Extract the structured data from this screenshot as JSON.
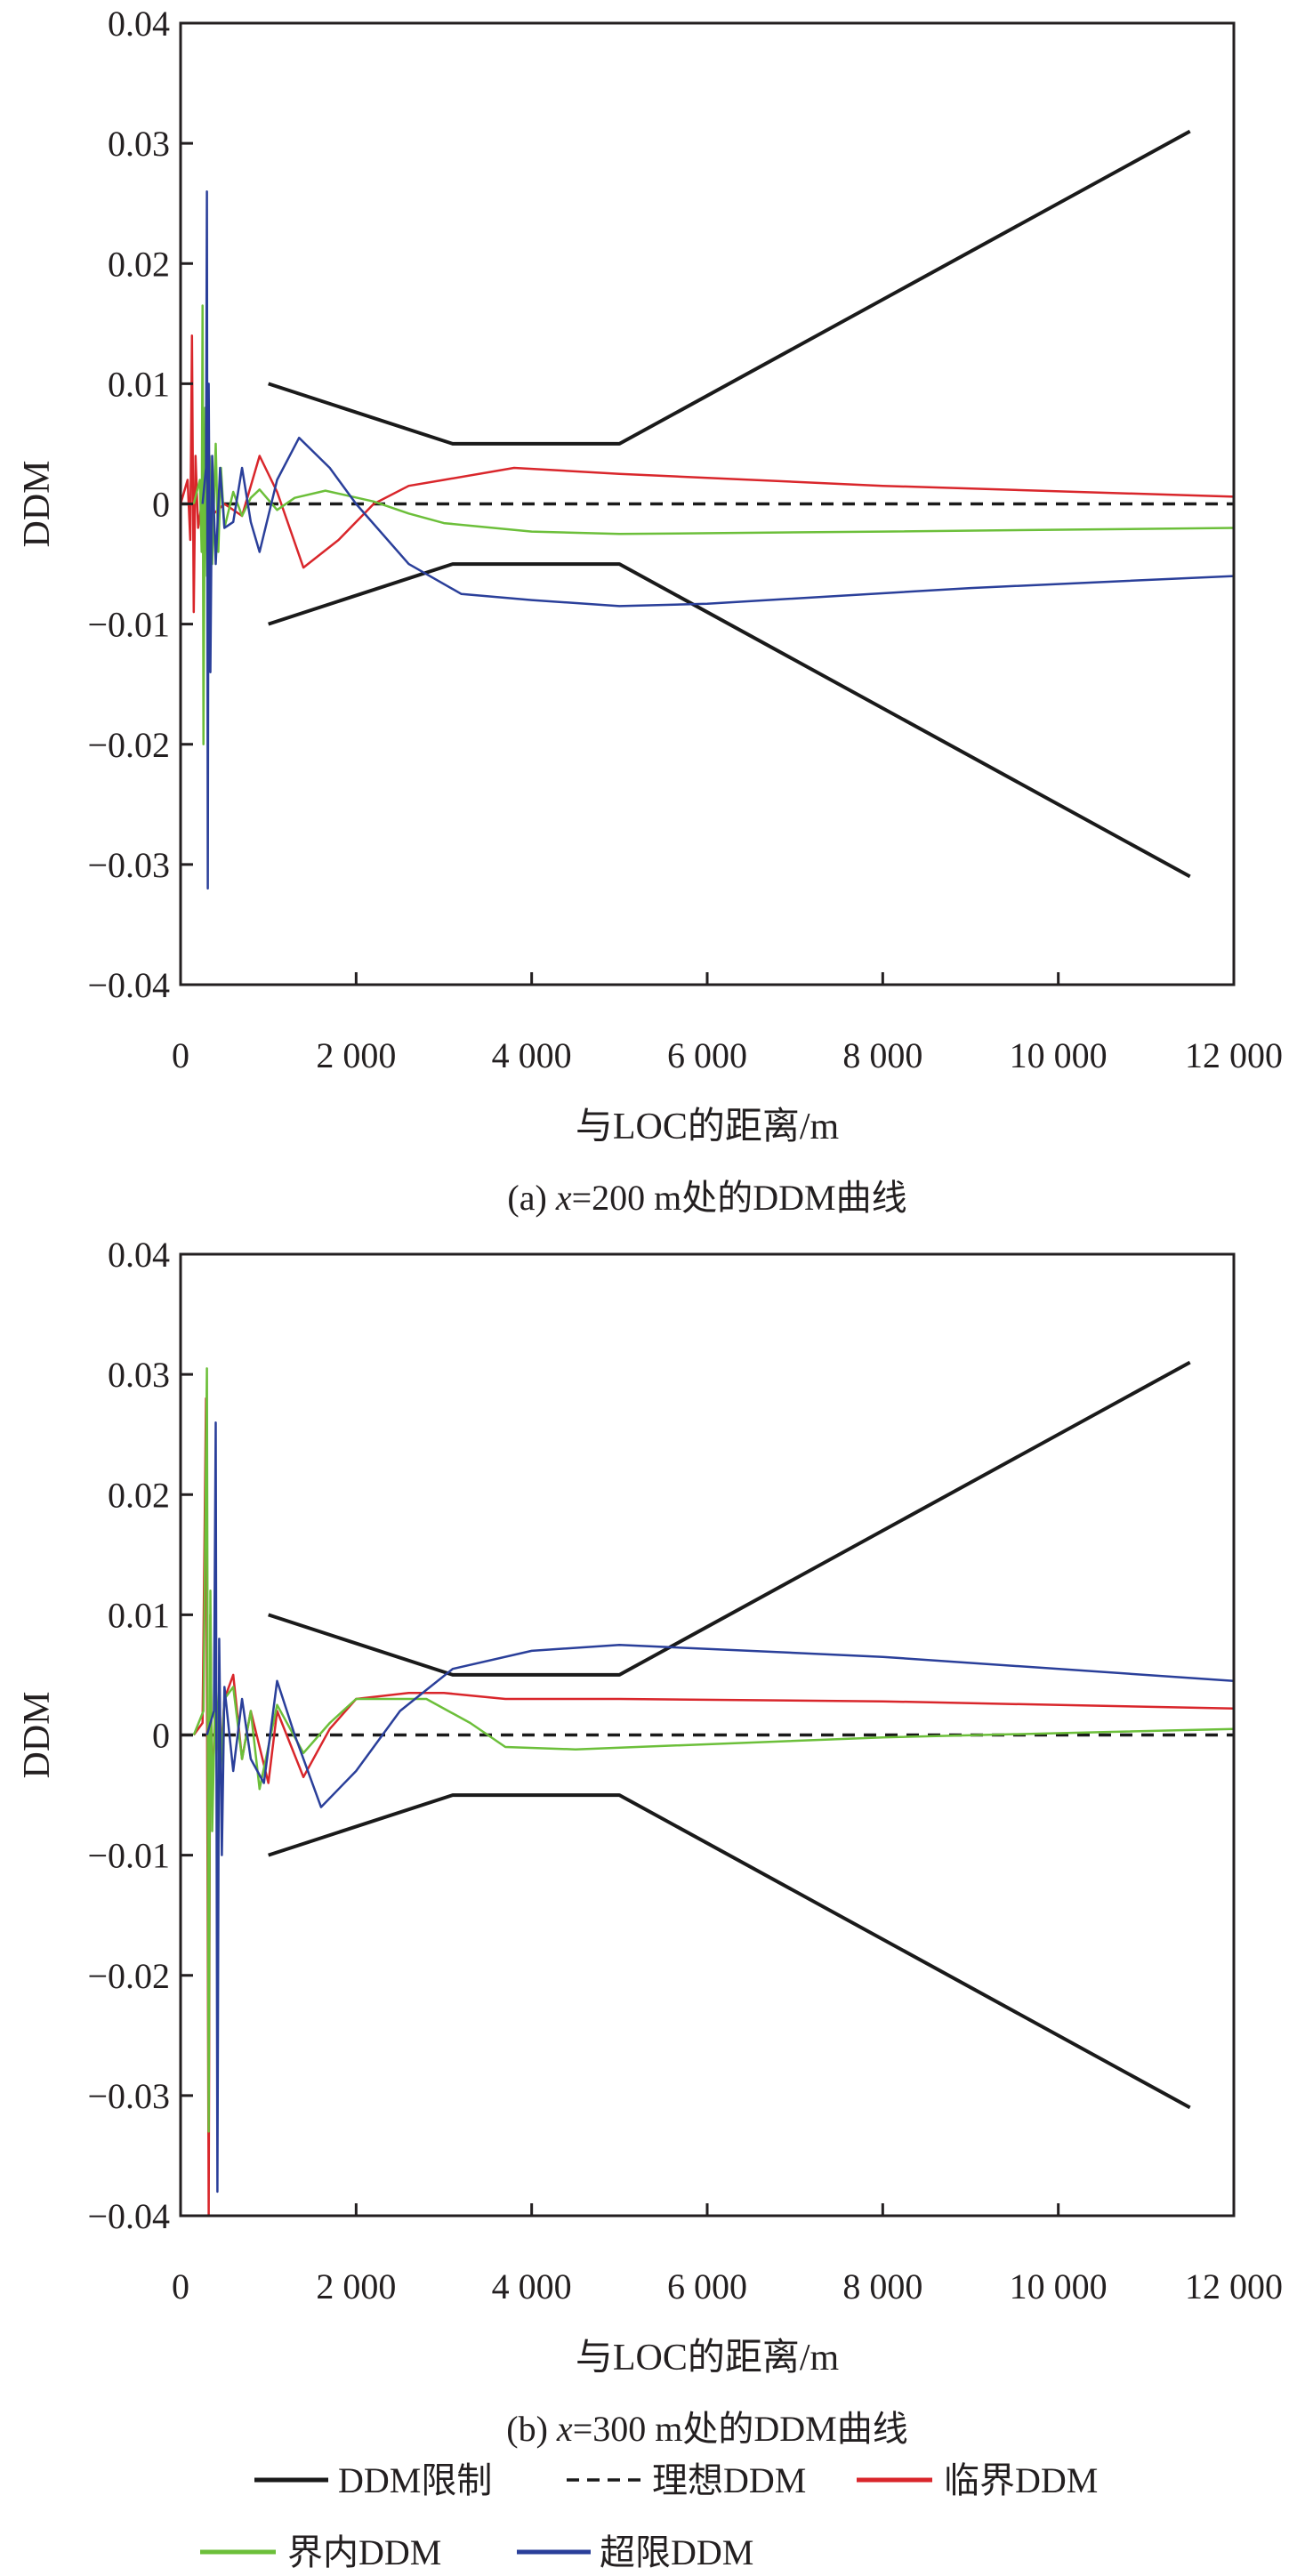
{
  "colors": {
    "limit": "#1a1a1a",
    "ideal": "#1a1a1a",
    "critical": "#d9262b",
    "inside": "#6cbf3a",
    "exceed": "#2a3f9a"
  },
  "legend": [
    {
      "key": "limit",
      "label": "DDM限制",
      "style": "solid"
    },
    {
      "key": "ideal",
      "label": "理想DDM",
      "style": "dashed"
    },
    {
      "key": "critical",
      "label": "临界DDM",
      "style": "solid"
    },
    {
      "key": "inside",
      "label": "界内DDM",
      "style": "solid"
    },
    {
      "key": "exceed",
      "label": "超限DDM",
      "style": "solid"
    }
  ],
  "chart_data": [
    {
      "type": "line",
      "caption": {
        "prefix": "(a) ",
        "var": "x",
        "suffix": "=200 m处的DDM曲线"
      },
      "xlabel": "与LOC的距离/m",
      "ylabel": "DDM",
      "xlim": [
        0,
        12000
      ],
      "ylim": [
        -0.04,
        0.04
      ],
      "xticks": [
        0,
        2000,
        4000,
        6000,
        8000,
        10000,
        12000
      ],
      "xtick_labels": [
        "0",
        "2 000",
        "4 000",
        "6 000",
        "8 000",
        "10 000",
        "12 000"
      ],
      "yticks": [
        0.04,
        0.03,
        0.02,
        0.01,
        0,
        -0.01,
        -0.02,
        -0.03,
        -0.04
      ],
      "ytick_labels": [
        "0.04",
        "0.03",
        "0.02",
        "0.01",
        "0",
        "−0.01",
        "−0.02",
        "−0.03",
        "−0.04"
      ],
      "series": [
        {
          "key": "limit",
          "name": "DDM限制 (上)",
          "x": [
            1000,
            3100,
            5000,
            11500
          ],
          "y": [
            0.01,
            0.005,
            0.005,
            0.031
          ]
        },
        {
          "key": "limit",
          "name": "DDM限制 (下)",
          "x": [
            1000,
            3100,
            5000,
            11500
          ],
          "y": [
            -0.01,
            -0.005,
            -0.005,
            -0.031
          ]
        },
        {
          "key": "ideal",
          "name": "理想DDM",
          "x": [
            0,
            12000
          ],
          "y": [
            0,
            0
          ]
        },
        {
          "key": "critical",
          "name": "临界DDM",
          "x": [
            0,
            80,
            110,
            130,
            150,
            170,
            200,
            260,
            350,
            500,
            700,
            900,
            1100,
            1400,
            1800,
            2200,
            2600,
            3000,
            3800,
            5000,
            8000,
            12000
          ],
          "y": [
            0,
            0.002,
            -0.003,
            0.014,
            -0.009,
            0.004,
            -0.002,
            0.001,
            -0.001,
            0,
            -0.001,
            0.004,
            0.001,
            -0.0053,
            -0.003,
            0,
            0.0015,
            0.002,
            0.003,
            0.0025,
            0.0015,
            0.0006
          ]
        },
        {
          "key": "inside",
          "name": "界内DDM",
          "x": [
            150,
            220,
            240,
            250,
            260,
            280,
            300,
            330,
            360,
            400,
            430,
            460,
            500,
            600,
            700,
            800,
            900,
            1100,
            1300,
            1650,
            2200,
            2600,
            3000,
            4000,
            5000,
            8000,
            12000
          ],
          "y": [
            0,
            0.002,
            -0.004,
            0.0165,
            -0.02,
            0.008,
            -0.006,
            0.004,
            -0.005,
            0.005,
            -0.004,
            0.003,
            -0.002,
            0.001,
            -0.001,
            0.0005,
            0.0012,
            -0.0005,
            0.0005,
            0.0011,
            0.0002,
            -0.0008,
            -0.0016,
            -0.0023,
            -0.0025,
            -0.0023,
            -0.002
          ]
        },
        {
          "key": "exceed",
          "name": "超限DDM",
          "x": [
            250,
            290,
            300,
            310,
            320,
            340,
            360,
            400,
            450,
            500,
            600,
            700,
            800,
            900,
            1100,
            1350,
            1700,
            2000,
            2600,
            3200,
            4000,
            5000,
            6000,
            9000,
            12000
          ],
          "y": [
            0,
            0.003,
            0.026,
            -0.032,
            0.01,
            -0.014,
            0.004,
            -0.005,
            0.003,
            -0.002,
            -0.0015,
            0.003,
            -0.0015,
            -0.004,
            0.002,
            0.0055,
            0.003,
            0,
            -0.005,
            -0.0075,
            -0.008,
            -0.0085,
            -0.0083,
            -0.007,
            -0.006
          ]
        }
      ]
    },
    {
      "type": "line",
      "caption": {
        "prefix": "(b) ",
        "var": "x",
        "suffix": "=300 m处的DDM曲线"
      },
      "xlabel": "与LOC的距离/m",
      "ylabel": "DDM",
      "xlim": [
        0,
        12000
      ],
      "ylim": [
        -0.04,
        0.04
      ],
      "xticks": [
        0,
        2000,
        4000,
        6000,
        8000,
        10000,
        12000
      ],
      "xtick_labels": [
        "0",
        "2 000",
        "4 000",
        "6 000",
        "8 000",
        "10 000",
        "12 000"
      ],
      "yticks": [
        0.04,
        0.03,
        0.02,
        0.01,
        0,
        -0.01,
        -0.02,
        -0.03,
        -0.04
      ],
      "ytick_labels": [
        "0.04",
        "0.03",
        "0.02",
        "0.01",
        "0",
        "−0.01",
        "−0.02",
        "−0.03",
        "−0.04"
      ],
      "series": [
        {
          "key": "limit",
          "name": "DDM限制 (上)",
          "x": [
            1000,
            3100,
            5000,
            11500
          ],
          "y": [
            0.01,
            0.005,
            0.005,
            0.031
          ]
        },
        {
          "key": "limit",
          "name": "DDM限制 (下)",
          "x": [
            1000,
            3100,
            5000,
            11500
          ],
          "y": [
            -0.01,
            -0.005,
            -0.005,
            -0.031
          ]
        },
        {
          "key": "ideal",
          "name": "理想DDM",
          "x": [
            0,
            12000
          ],
          "y": [
            0,
            0
          ]
        },
        {
          "key": "critical",
          "name": "临界DDM",
          "x": [
            150,
            250,
            290,
            320,
            340,
            360,
            400,
            450,
            500,
            600,
            700,
            800,
            1000,
            1100,
            1400,
            1700,
            2000,
            2600,
            3000,
            3700,
            5000,
            8000,
            12000
          ],
          "y": [
            0,
            0.001,
            0.028,
            -0.04,
            0.01,
            -0.006,
            0.004,
            -0.003,
            0.003,
            0.005,
            -0.002,
            0.002,
            -0.004,
            0.002,
            -0.0035,
            0.0005,
            0.003,
            0.0035,
            0.0035,
            0.003,
            0.003,
            0.0028,
            0.0022
          ]
        },
        {
          "key": "inside",
          "name": "界内DDM",
          "x": [
            150,
            260,
            300,
            320,
            340,
            360,
            400,
            450,
            500,
            600,
            700,
            800,
            900,
            1100,
            1400,
            1700,
            2000,
            2800,
            3300,
            3700,
            4500,
            8000,
            12000
          ],
          "y": [
            0,
            0.002,
            0.0305,
            -0.033,
            0.012,
            -0.008,
            0.005,
            -0.004,
            0.003,
            0.004,
            -0.002,
            0.002,
            -0.0045,
            0.0025,
            -0.0015,
            0.001,
            0.003,
            0.003,
            0.001,
            -0.001,
            -0.0012,
            -0.0002,
            0.0005
          ]
        },
        {
          "key": "exceed",
          "name": "超限DDM",
          "x": [
            300,
            380,
            400,
            420,
            440,
            470,
            500,
            600,
            700,
            800,
            950,
            1100,
            1300,
            1600,
            2000,
            2500,
            3100,
            4000,
            5000,
            8000,
            12000
          ],
          "y": [
            0,
            0.002,
            0.026,
            -0.038,
            0.008,
            -0.01,
            0.004,
            -0.003,
            0.003,
            -0.002,
            -0.004,
            0.0045,
            0.0,
            -0.006,
            -0.003,
            0.002,
            0.0055,
            0.007,
            0.0075,
            0.0065,
            0.0045
          ]
        }
      ]
    }
  ]
}
